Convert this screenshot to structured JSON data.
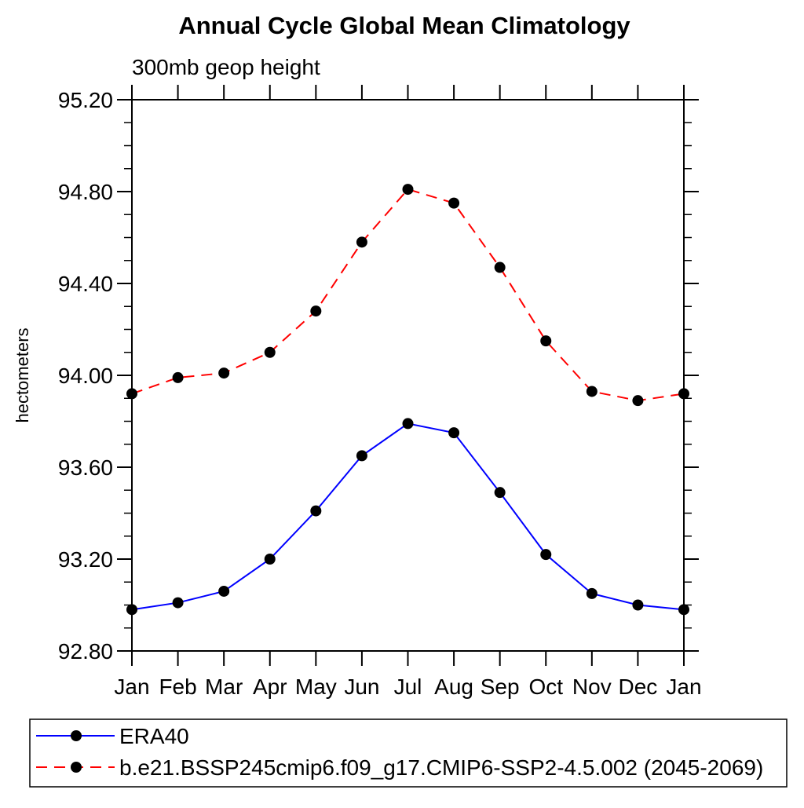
{
  "chart_data": {
    "type": "line",
    "title": "Annual Cycle Global Mean Climatology",
    "subtitle": "300mb geop height",
    "ylabel": "hectometers",
    "xlabel": "",
    "categories": [
      "Jan",
      "Feb",
      "Mar",
      "Apr",
      "May",
      "Jun",
      "Jul",
      "Aug",
      "Sep",
      "Oct",
      "Nov",
      "Dec",
      "Jan"
    ],
    "ylim": [
      92.8,
      95.2
    ],
    "ytick_step": 0.4,
    "yminor_step": 0.1,
    "ytick_labels": [
      "92.80",
      "93.20",
      "93.60",
      "94.00",
      "94.40",
      "94.80",
      "95.20"
    ],
    "grid": false,
    "legend_position": "bottom-left-box",
    "marker": "black-filled-circle",
    "marker_color": "#000000",
    "axis_color": "#000000",
    "background_color": "#ffffff",
    "series": [
      {
        "name": "ERA40",
        "color": "#0000ff",
        "line_style": "solid",
        "values": [
          92.98,
          93.01,
          93.06,
          93.2,
          93.41,
          93.65,
          93.79,
          93.75,
          93.49,
          93.22,
          93.05,
          93.0,
          92.98
        ]
      },
      {
        "name": "b.e21.BSSP245cmip6.f09_g17.CMIP6-SSP2-4.5.002 (2045-2069)",
        "color": "#ff0000",
        "line_style": "dashed",
        "values": [
          93.92,
          93.99,
          94.01,
          94.1,
          94.28,
          94.58,
          94.81,
          94.75,
          94.47,
          94.15,
          93.93,
          93.89,
          93.92
        ]
      }
    ]
  }
}
